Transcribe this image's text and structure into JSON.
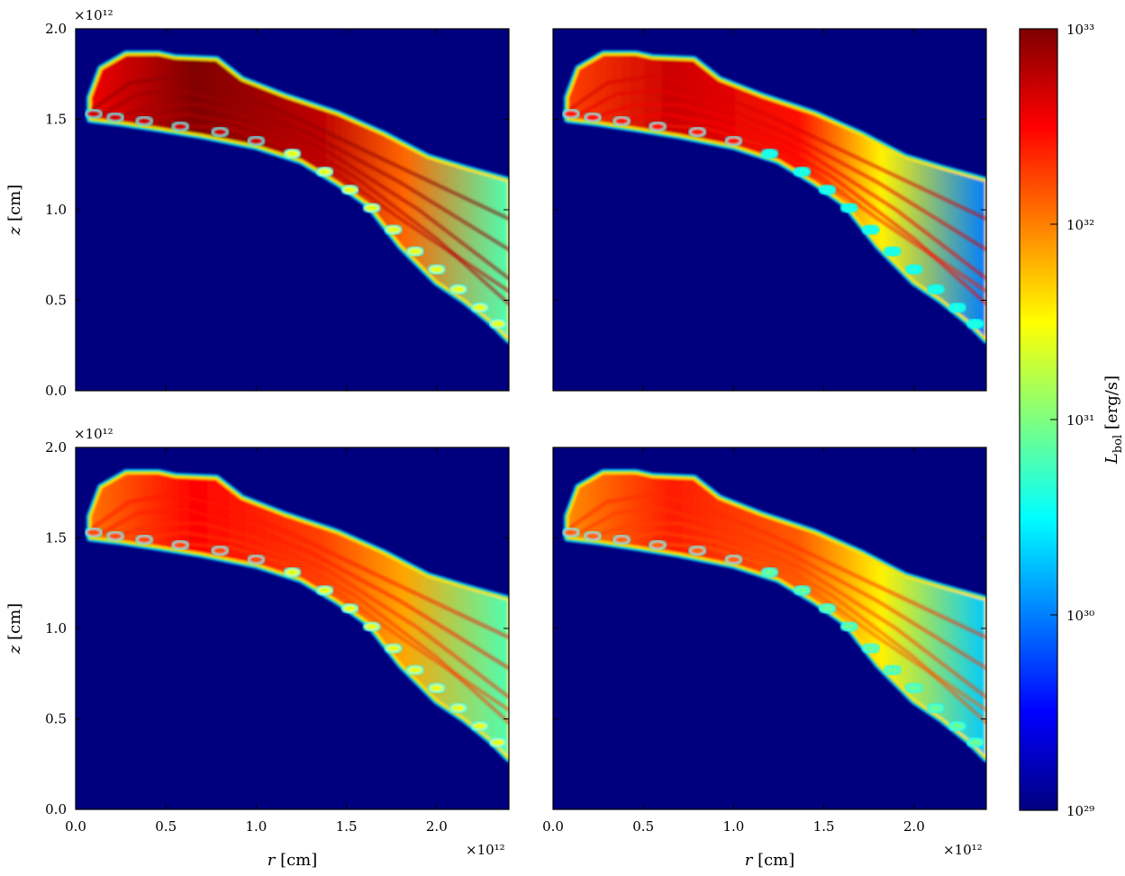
{
  "chart_data": {
    "type": "heatmap",
    "colormap": "jet",
    "background_color": "#00007f",
    "panels": [
      {
        "position": "top-left",
        "xlim": [
          0.0,
          2.4
        ],
        "ylim": [
          0.0,
          2.0
        ],
        "xtick_labels": [],
        "ytick_labels": [
          "0.0",
          "0.5",
          "1.0",
          "1.5",
          "2.0"
        ],
        "xlabel": "",
        "ylabel": "z [cm]",
        "x_multiplier": "",
        "y_multiplier": "×10¹²",
        "peak_log_luminosity": 33.0,
        "tail_log_luminosity": 30.8
      },
      {
        "position": "top-right",
        "xlim": [
          0.0,
          2.4
        ],
        "ylim": [
          0.0,
          2.0
        ],
        "xtick_labels": [],
        "ytick_labels": [],
        "xlabel": "",
        "ylabel": "",
        "x_multiplier": "",
        "y_multiplier": "",
        "peak_log_luminosity": 32.7,
        "tail_log_luminosity": 30.0
      },
      {
        "position": "bottom-left",
        "xlim": [
          0.0,
          2.4
        ],
        "ylim": [
          0.0,
          2.0
        ],
        "xtick_labels": [
          "0.0",
          "0.5",
          "1.0",
          "1.5",
          "2.0"
        ],
        "ytick_labels": [
          "0.0",
          "0.5",
          "1.0",
          "1.5",
          "2.0"
        ],
        "xlabel": "r [cm]",
        "ylabel": "z [cm]",
        "x_multiplier": "×10¹²",
        "y_multiplier": "×10¹²",
        "peak_log_luminosity": 32.5,
        "tail_log_luminosity": 30.8
      },
      {
        "position": "bottom-right",
        "xlim": [
          0.0,
          2.4
        ],
        "ylim": [
          0.0,
          2.0
        ],
        "xtick_labels": [
          "0.0",
          "0.5",
          "1.0",
          "1.5",
          "2.0"
        ],
        "ytick_labels": [],
        "xlabel": "r [cm]",
        "ylabel": "",
        "x_multiplier": "×10¹²",
        "y_multiplier": "",
        "peak_log_luminosity": 32.4,
        "tail_log_luminosity": 30.3
      }
    ],
    "colorbar": {
      "scale": "log",
      "range": [
        1e+29,
        1e+33
      ],
      "tick_labels": [
        "10²⁹",
        "10³⁰",
        "10³¹",
        "10³²",
        "10³³"
      ],
      "label": "L_bol [erg/s]"
    }
  }
}
